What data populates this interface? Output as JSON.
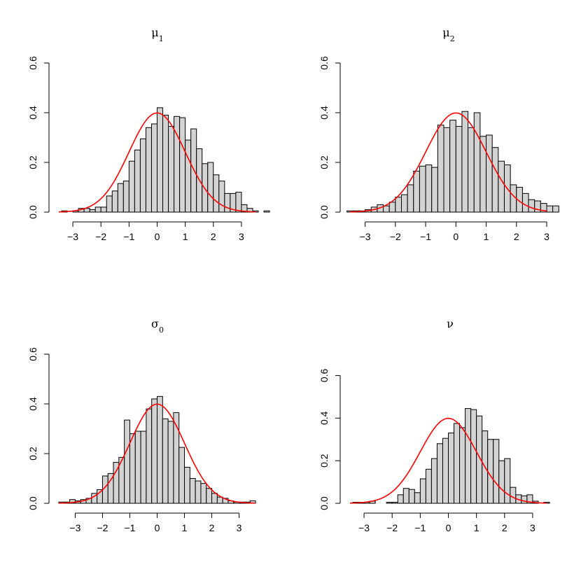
{
  "chart_data": [
    {
      "type": "bar",
      "title": "μ",
      "title_sub": "1",
      "xlabel": "",
      "ylabel": "",
      "xlim": [
        -3.5,
        3.5
      ],
      "ylim": [
        0,
        0.6
      ],
      "bin_width": 0.2,
      "bin_start": -3.4,
      "xticks": [
        "−3",
        "−2",
        "−1",
        "0",
        "1",
        "2",
        "3"
      ],
      "yticks": [
        "0.0",
        "0.2",
        "0.4",
        "0.6"
      ],
      "values": [
        0.005,
        0.0,
        0.005,
        0.015,
        0.015,
        0.01,
        0.02,
        0.02,
        0.065,
        0.085,
        0.115,
        0.125,
        0.205,
        0.25,
        0.295,
        0.34,
        0.355,
        0.42,
        0.39,
        0.345,
        0.385,
        0.38,
        0.29,
        0.335,
        0.255,
        0.195,
        0.2,
        0.15,
        0.125,
        0.075,
        0.075,
        0.08,
        0.03,
        0.015,
        0.005,
        0.0,
        0.005
      ],
      "curve": {
        "type": "normal-density",
        "mean": 0,
        "sd": 1,
        "color": "#ff0000"
      },
      "bar_color": "#d3d3d3"
    },
    {
      "type": "bar",
      "title": "μ",
      "title_sub": "2",
      "xlabel": "",
      "ylabel": "",
      "xlim": [
        -3.5,
        3.0
      ],
      "ylim": [
        0,
        0.6
      ],
      "bin_width": 0.2,
      "bin_start": -3.6,
      "xticks": [
        "−3",
        "−2",
        "−1",
        "0",
        "1",
        "2",
        "3"
      ],
      "yticks": [
        "0.0",
        "0.2",
        "0.4",
        "0.6"
      ],
      "values": [
        0.005,
        0.005,
        0.005,
        0.01,
        0.02,
        0.03,
        0.025,
        0.04,
        0.06,
        0.07,
        0.11,
        0.165,
        0.185,
        0.19,
        0.18,
        0.35,
        0.34,
        0.37,
        0.345,
        0.405,
        0.34,
        0.4,
        0.305,
        0.31,
        0.26,
        0.205,
        0.19,
        0.11,
        0.1,
        0.075,
        0.05,
        0.045,
        0.035,
        0.025,
        0.025
      ],
      "curve": {
        "type": "normal-density",
        "mean": 0,
        "sd": 1,
        "color": "#ff0000"
      },
      "bar_color": "#d3d3d3"
    },
    {
      "type": "bar",
      "title": "σ",
      "title_sub": "0",
      "xlabel": "",
      "ylabel": "",
      "xlim": [
        -3.6,
        3.6
      ],
      "ylim": [
        0,
        0.6
      ],
      "bin_width": 0.2,
      "bin_start": -3.6,
      "xticks": [
        "−3",
        "−2",
        "−1",
        "0",
        "1",
        "2",
        "3"
      ],
      "yticks": [
        "0.0",
        "0.2",
        "0.4",
        "0.6"
      ],
      "values": [
        0.005,
        0.005,
        0.015,
        0.01,
        0.015,
        0.02,
        0.04,
        0.055,
        0.11,
        0.12,
        0.165,
        0.185,
        0.335,
        0.28,
        0.29,
        0.29,
        0.38,
        0.42,
        0.43,
        0.34,
        0.33,
        0.365,
        0.225,
        0.145,
        0.1,
        0.09,
        0.08,
        0.06,
        0.04,
        0.025,
        0.02,
        0.01,
        0.005,
        0.005,
        0.005,
        0.01
      ],
      "curve": {
        "type": "normal-density",
        "mean": 0,
        "sd": 1,
        "color": "#ff0000"
      },
      "bar_color": "#d3d3d3"
    },
    {
      "type": "bar",
      "title": "ν",
      "title_sub": "",
      "xlabel": "",
      "ylabel": "",
      "xlim": [
        -3.5,
        3.5
      ],
      "ylim": [
        0,
        0.7
      ],
      "bin_width": 0.2,
      "bin_start": -3.4,
      "xticks": [
        "−3",
        "−2",
        "−1",
        "0",
        "1",
        "2",
        "3"
      ],
      "yticks": [
        "0.0",
        "0.2",
        "0.4",
        "0.6"
      ],
      "values": [
        0.005,
        0.005,
        0.005,
        0.01,
        0.0,
        0.0,
        0.005,
        0.005,
        0.04,
        0.07,
        0.065,
        0.05,
        0.115,
        0.16,
        0.21,
        0.28,
        0.305,
        0.33,
        0.375,
        0.355,
        0.445,
        0.44,
        0.41,
        0.34,
        0.3,
        0.3,
        0.2,
        0.21,
        0.075,
        0.04,
        0.035,
        0.04,
        0.01,
        0.0,
        0.005
      ],
      "curve": {
        "type": "normal-density",
        "mean": 0,
        "sd": 1,
        "color": "#ff0000"
      },
      "bar_color": "#d3d3d3"
    }
  ]
}
